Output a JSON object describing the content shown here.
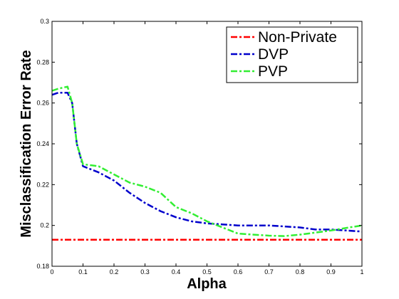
{
  "chart_data": {
    "type": "line",
    "xlabel": "Alpha",
    "ylabel": "Misclassification Error Rate",
    "xlim": [
      0,
      1
    ],
    "ylim": [
      0.18,
      0.3
    ],
    "xticks": [
      0,
      0.1,
      0.2,
      0.3,
      0.4,
      0.5,
      0.6,
      0.7,
      0.8,
      0.9,
      1
    ],
    "xtick_labels": [
      "0",
      "0.1",
      "0.2",
      "0.3",
      "0.4",
      "0.5",
      "0.6",
      "0.7",
      "0.8",
      "0.9",
      "1"
    ],
    "yticks": [
      0.18,
      0.2,
      0.22,
      0.24,
      0.26,
      0.28,
      0.3
    ],
    "ytick_labels": [
      "0.18",
      "0.2",
      "0.22",
      "0.24",
      "0.26",
      "0.28",
      "0.3"
    ],
    "legend_position": "top-right",
    "grid": false,
    "series": [
      {
        "name": "Non-Private",
        "color": "#ff0000",
        "x": [
          0,
          1
        ],
        "y": [
          0.193,
          0.193
        ]
      },
      {
        "name": "DVP",
        "color": "#0000cc",
        "x": [
          0,
          0.02,
          0.05,
          0.065,
          0.08,
          0.1,
          0.15,
          0.2,
          0.25,
          0.3,
          0.35,
          0.4,
          0.45,
          0.5,
          0.55,
          0.6,
          0.65,
          0.7,
          0.75,
          0.8,
          0.85,
          0.9,
          0.95,
          1
        ],
        "y": [
          0.264,
          0.265,
          0.265,
          0.26,
          0.24,
          0.229,
          0.226,
          0.222,
          0.216,
          0.211,
          0.207,
          0.204,
          0.202,
          0.201,
          0.2005,
          0.2,
          0.2,
          0.2,
          0.1995,
          0.199,
          0.198,
          0.198,
          0.1975,
          0.197
        ]
      },
      {
        "name": "PVP",
        "color": "#33ee33",
        "x": [
          0,
          0.02,
          0.05,
          0.065,
          0.08,
          0.1,
          0.15,
          0.2,
          0.25,
          0.3,
          0.35,
          0.4,
          0.45,
          0.5,
          0.55,
          0.6,
          0.65,
          0.7,
          0.75,
          0.8,
          0.85,
          0.9,
          0.95,
          1
        ],
        "y": [
          0.266,
          0.267,
          0.268,
          0.26,
          0.24,
          0.23,
          0.229,
          0.225,
          0.221,
          0.219,
          0.216,
          0.209,
          0.206,
          0.202,
          0.199,
          0.196,
          0.1955,
          0.195,
          0.1948,
          0.1955,
          0.1965,
          0.1975,
          0.1988,
          0.2
        ]
      }
    ]
  }
}
